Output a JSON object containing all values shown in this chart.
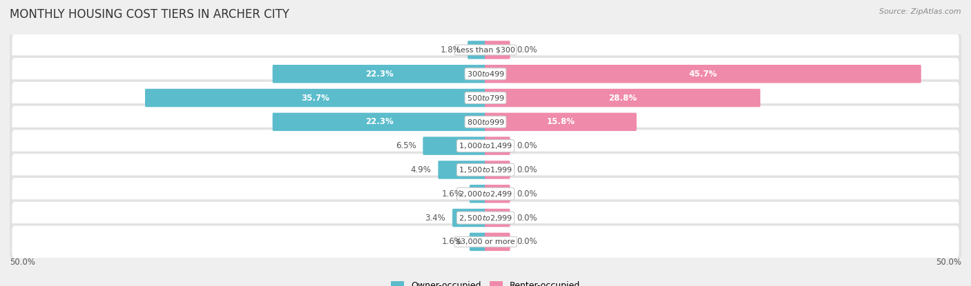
{
  "title": "MONTHLY HOUSING COST TIERS IN ARCHER CITY",
  "source": "Source: ZipAtlas.com",
  "categories": [
    "Less than $300",
    "$300 to $499",
    "$500 to $799",
    "$800 to $999",
    "$1,000 to $1,499",
    "$1,500 to $1,999",
    "$2,000 to $2,499",
    "$2,500 to $2,999",
    "$3,000 or more"
  ],
  "owner_values": [
    1.8,
    22.3,
    35.7,
    22.3,
    6.5,
    4.9,
    1.6,
    3.4,
    1.6
  ],
  "renter_values": [
    0.0,
    45.7,
    28.8,
    15.8,
    0.0,
    0.0,
    0.0,
    0.0,
    0.0
  ],
  "renter_stub": 2.5,
  "owner_color": "#5bbccc",
  "renter_color": "#f08aaa",
  "axis_limit": 50.0,
  "background_color": "#efefef",
  "row_bg_color": "#e8e8e8",
  "bar_height": 0.6,
  "title_fontsize": 12,
  "label_fontsize": 8.5,
  "source_fontsize": 8,
  "legend_fontsize": 9,
  "inside_threshold_owner": 8.0,
  "inside_threshold_renter": 8.0
}
